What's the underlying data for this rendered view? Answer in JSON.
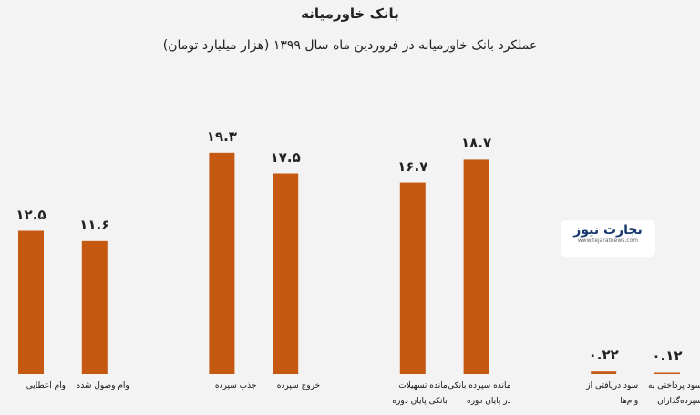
{
  "chart_data": {
    "type": "bar",
    "title": "بانک خاورمیانه",
    "subtitle": "عملکرد بانک خاورمیانه در فروردین ماه سال ۱۳۹۹ (هزار میلیارد تومان)",
    "categories": [
      "وام اعطایی",
      "وام وصول شده",
      null,
      "جذب سپرده",
      "خروج سپرده",
      null,
      "مانده تسهیلات بانکی پایان دوره",
      "مانده سپرده بانکی در پایان دوره",
      null,
      "سود دریافتی از وام‌ها",
      "سود پرداختی به سپرده‌گذاران"
    ],
    "values": [
      12.5,
      11.6,
      null,
      19.3,
      17.5,
      null,
      16.7,
      18.7,
      null,
      0.22,
      0.12
    ],
    "value_labels": [
      "۱۲.۵",
      "۱۱.۶",
      null,
      "۱۹.۳",
      "۱۷.۵",
      null,
      "۱۶.۷",
      "۱۸.۷",
      null,
      "۰.۲۲",
      "۰.۱۲"
    ],
    "color": "#c65911",
    "ylim": [
      0,
      20
    ],
    "watermark": {
      "text": "تجارت نیوز",
      "url": "www.tejaratnews.com"
    }
  }
}
